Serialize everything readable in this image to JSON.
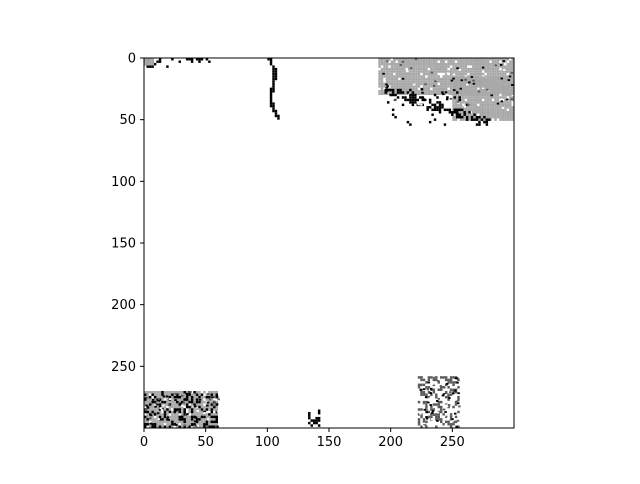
{
  "chart_data": {
    "type": "heatmap",
    "title": "",
    "xlabel": "",
    "ylabel": "",
    "xlim": [
      0,
      300
    ],
    "ylim": [
      300,
      0
    ],
    "x_ticks": [
      0,
      50,
      100,
      150,
      200,
      250
    ],
    "y_ticks": [
      0,
      50,
      100,
      150,
      200,
      250
    ],
    "grid": false,
    "colormap": "gray",
    "colors": {
      "background": "#ffffff",
      "light_gray": "#a8a8a8",
      "dark_gray": "#5a5a5a",
      "black": "#000000"
    },
    "regions": [
      {
        "name": "top-left-dark-band",
        "shade": "black",
        "x": [
          0,
          20
        ],
        "y": [
          0,
          8
        ]
      },
      {
        "name": "top-left-gray-band",
        "shade": "light_gray",
        "x": [
          0,
          8
        ],
        "y": [
          0,
          6
        ]
      },
      {
        "name": "top-left-streak",
        "shade": "black",
        "x": [
          20,
          55
        ],
        "y": [
          0,
          4
        ]
      },
      {
        "name": "top-center-curve",
        "shade": "black",
        "x": [
          98,
          110
        ],
        "y": [
          0,
          50
        ]
      },
      {
        "name": "top-right-gray-block",
        "shade": "light_gray",
        "x": [
          190,
          300
        ],
        "y": [
          0,
          30
        ]
      },
      {
        "name": "top-right-gray-extension",
        "shade": "light_gray",
        "x": [
          250,
          300
        ],
        "y": [
          15,
          50
        ]
      },
      {
        "name": "top-right-edge",
        "shade": "black",
        "x": [
          195,
          280
        ],
        "y": [
          25,
          55
        ]
      },
      {
        "name": "bottom-left-gray-block",
        "shade": "light_gray",
        "x": [
          0,
          60
        ],
        "y": [
          270,
          300
        ]
      },
      {
        "name": "bottom-left-dark-spots",
        "shade": "black",
        "x": [
          0,
          60
        ],
        "y": [
          270,
          300
        ]
      },
      {
        "name": "bottom-right-speckle",
        "shade": "dark_gray",
        "x": [
          222,
          255
        ],
        "y": [
          258,
          300
        ]
      },
      {
        "name": "bottom-center-dots",
        "shade": "black",
        "x": [
          133,
          142
        ],
        "y": [
          285,
          300
        ]
      }
    ]
  }
}
